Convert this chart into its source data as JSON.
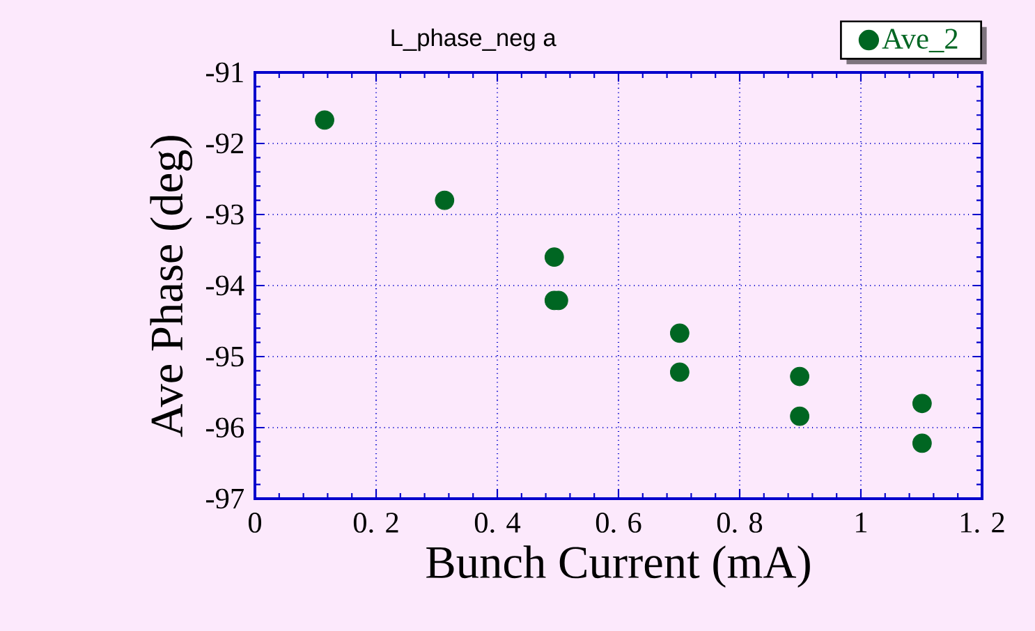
{
  "chart_data": {
    "type": "scatter",
    "title": "L_phase_neg a",
    "xlabel": "Bunch Current (mA)",
    "ylabel": "Ave Phase (deg)",
    "series": [
      {
        "name": "Ave_2",
        "color": "#006622",
        "x": [
          0.115,
          0.313,
          0.494,
          0.494,
          0.501,
          0.701,
          0.701,
          0.899,
          0.899,
          1.101,
          1.101
        ],
        "values": [
          -91.67,
          -92.8,
          -93.6,
          -94.21,
          -94.21,
          -94.67,
          -95.22,
          -95.28,
          -95.84,
          -95.66,
          -96.22
        ]
      }
    ],
    "xlim": [
      0,
      1.2
    ],
    "ylim": [
      -97,
      -91
    ],
    "xticks": [
      0,
      {
        "value": 0.2,
        "label": "0. 2"
      },
      {
        "value": 0.4,
        "label": "0. 4"
      },
      {
        "value": 0.6,
        "label": "0. 6"
      },
      {
        "value": 0.8,
        "label": "0. 8"
      },
      1,
      {
        "value": 1.2,
        "label": "1. 2"
      }
    ],
    "yticks": [
      -97,
      -96,
      -95,
      -94,
      -93,
      -92,
      -91
    ],
    "grid": true,
    "legend": "top right",
    "marker": "circle"
  }
}
